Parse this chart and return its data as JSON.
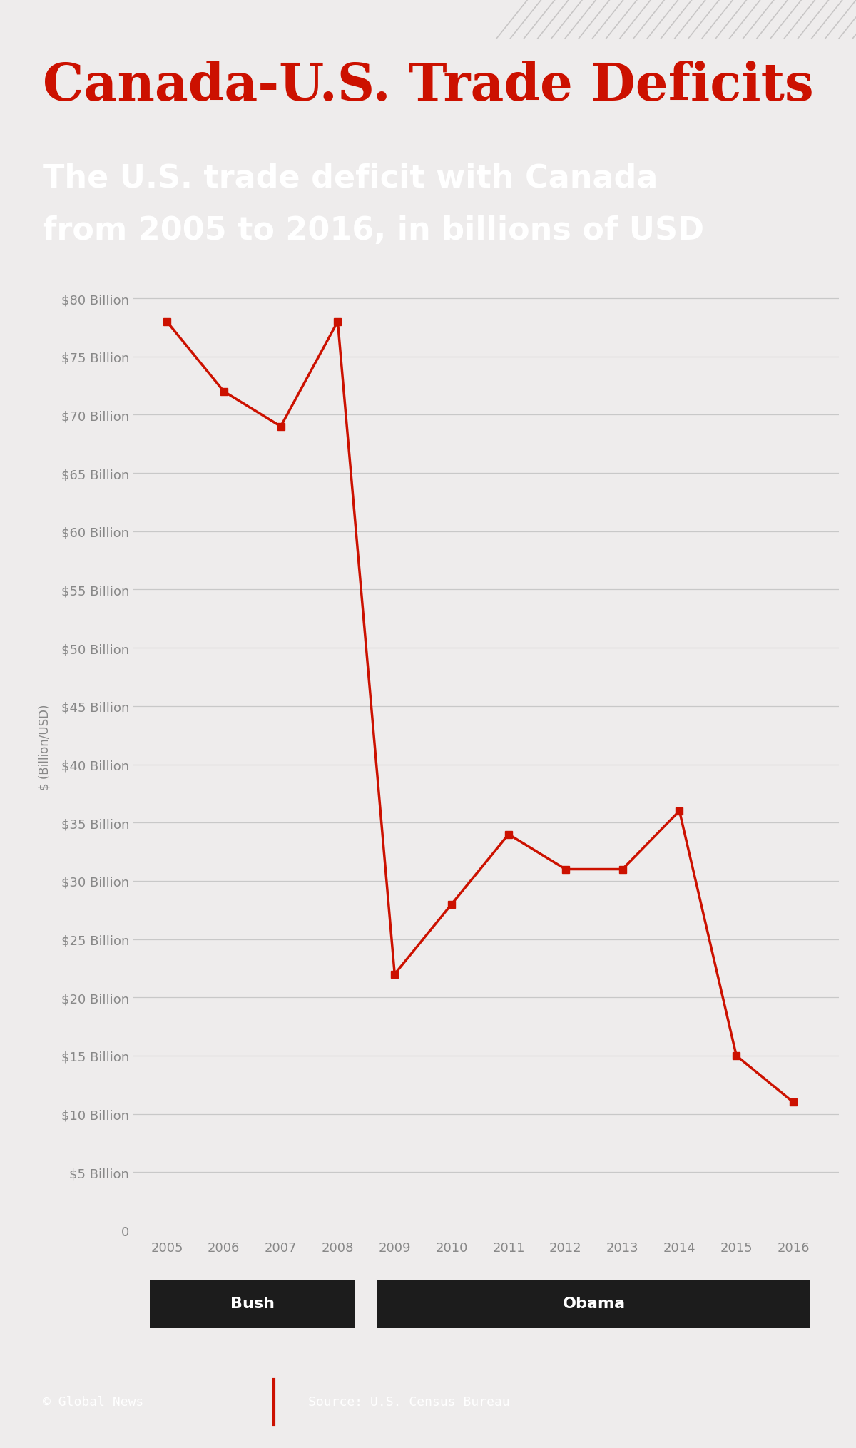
{
  "title": "Canada-U.S. Trade Deficits",
  "subtitle_line1": "The U.S. trade deficit with Canada",
  "subtitle_line2": "from 2005 to 2016, in billions of USD",
  "ylabel": "$ (Billion/USD)",
  "years": [
    2005,
    2006,
    2007,
    2008,
    2009,
    2010,
    2011,
    2012,
    2013,
    2014,
    2015,
    2016
  ],
  "values": [
    78,
    72,
    69,
    78,
    22,
    28,
    34,
    31,
    31,
    36,
    15,
    11
  ],
  "line_color": "#cc1100",
  "marker_color": "#cc1100",
  "ytick_labels": [
    "0",
    "$5 Billion",
    "$10 Billion",
    "$15 Billion",
    "$20 Billion",
    "$25 Billion",
    "$30 Billion",
    "$35 Billion",
    "$40 Billion",
    "$45 Billion",
    "$50 Billion",
    "$55 Billion",
    "$60 Billion",
    "$65 Billion",
    "$70 Billion",
    "$75 Billion",
    "$80 Billion"
  ],
  "ytick_values": [
    0,
    5,
    10,
    15,
    20,
    25,
    30,
    35,
    40,
    45,
    50,
    55,
    60,
    65,
    70,
    75,
    80
  ],
  "ylim": [
    0,
    83
  ],
  "title_color": "#cc1100",
  "title_fontsize": 52,
  "subtitle_fontsize": 32,
  "subtitle_bg": "#1c1c1c",
  "subtitle_fg": "#ffffff",
  "bg_color": "#eeecec",
  "plot_bg": "#eeecec",
  "grid_color": "#c8c8c8",
  "axis_label_color": "#888888",
  "tick_label_color": "#888888",
  "footer_bg": "#1c1c1c",
  "footer_fg": "#ffffff",
  "footer_text": "© Global News",
  "footer_source": "Source: U.S. Census Bureau",
  "president_bg": "#1c1c1c",
  "president_fg": "#ffffff",
  "top_stripe_color": "#e8e6e6",
  "white_bg": "#ffffff"
}
